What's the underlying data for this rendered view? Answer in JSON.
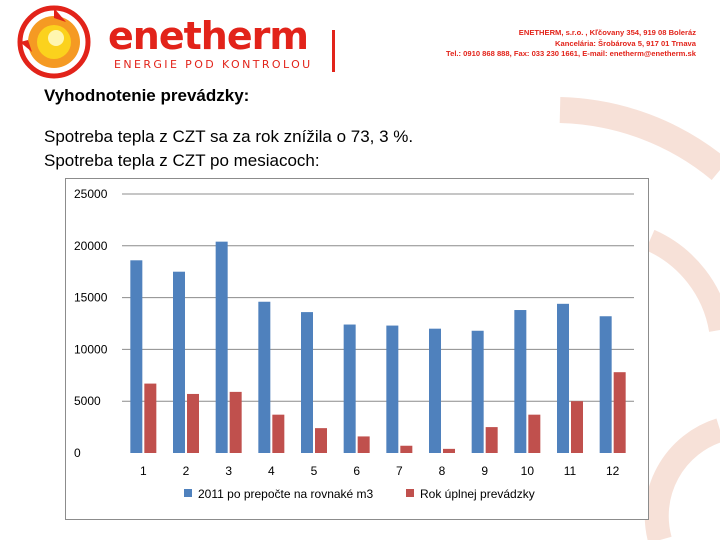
{
  "header": {
    "logo_text": "enetherm",
    "logo_tagline": "ENERGIE POD KONTROLOU",
    "contact_lines": [
      "ENETHERM, s.r.o. , Kľčovany 354, 919 08 Boleráz",
      "Kancelária: Šrobárova 5, 917 01 Trnava",
      "Tel.: 0910 868 888, Fax: 033 230 1661, E-mail: enetherm@enetherm.sk"
    ]
  },
  "content": {
    "heading": "Vyhodnotenie prevádzky:",
    "line1": "Spotreba tepla z CZT sa za rok znížila o 73, 3 %.",
    "line2": "Spotreba tepla z CZT po mesiacoch:"
  },
  "colors": {
    "brand_red": "#e2231a",
    "series_blue": "#4f81bd",
    "series_red": "#c0504d"
  },
  "chart_data": {
    "type": "bar",
    "title": "",
    "xlabel": "",
    "ylabel": "",
    "ylim": [
      0,
      25000
    ],
    "yticks": [
      0,
      5000,
      10000,
      15000,
      20000,
      25000
    ],
    "grid": true,
    "legend_position": "bottom",
    "categories": [
      "1",
      "2",
      "3",
      "4",
      "5",
      "6",
      "7",
      "8",
      "9",
      "10",
      "11",
      "12"
    ],
    "series": [
      {
        "name": "2011 po prepočte na rovnaké m3",
        "color": "#4f81bd",
        "values": [
          18600,
          17500,
          20400,
          14600,
          13600,
          12400,
          12300,
          12000,
          11800,
          13800,
          14400,
          13200
        ]
      },
      {
        "name": "Rok úplnej prevádzky",
        "color": "#c0504d",
        "values": [
          6700,
          5700,
          5900,
          3700,
          2400,
          1600,
          700,
          400,
          2500,
          3700,
          5000,
          7800
        ]
      }
    ]
  }
}
